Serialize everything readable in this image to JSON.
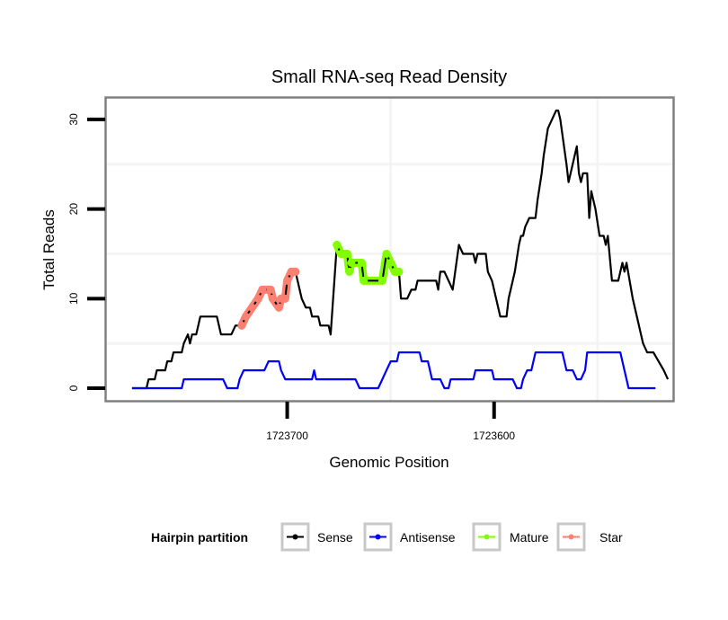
{
  "chart_data": {
    "type": "line",
    "title": "Small RNA-seq Read Density",
    "xlabel": "Genomic Position",
    "ylabel": "Total Reads",
    "x_reversed": true,
    "xlim": [
      1723788,
      1723513
    ],
    "ylim": [
      -1.5,
      32.5
    ],
    "x_ticks": [
      1723700,
      1723600
    ],
    "x_tick_labels": [
      "1723700",
      "1723600"
    ],
    "y_ticks": [
      0,
      10,
      20,
      30
    ],
    "y_tick_labels": [
      "0",
      "10",
      "20",
      "30"
    ],
    "x_minor_grid": [
      1723650,
      1723550
    ],
    "y_minor_grid": [
      5,
      15,
      25
    ],
    "grid": true,
    "legend": {
      "title": "Hairpin partition",
      "placement": "bottom",
      "entries": [
        {
          "label": "Sense",
          "color": "#000000"
        },
        {
          "label": "Antisense",
          "color": "#0000ff"
        },
        {
          "label": "Mature",
          "color": "#7fff00"
        },
        {
          "label": "Star",
          "color": "#fa8072"
        }
      ]
    },
    "series": [
      {
        "name": "Sense",
        "color": "#000000",
        "points": [
          [
            1723775,
            0
          ],
          [
            1723768,
            0
          ],
          [
            1723767,
            1
          ],
          [
            1723764,
            1
          ],
          [
            1723763,
            2
          ],
          [
            1723759,
            2
          ],
          [
            1723758,
            3
          ],
          [
            1723756,
            3
          ],
          [
            1723755,
            4
          ],
          [
            1723751,
            4
          ],
          [
            1723750,
            5
          ],
          [
            1723748,
            6
          ],
          [
            1723747,
            5
          ],
          [
            1723746,
            6
          ],
          [
            1723744,
            6
          ],
          [
            1723742,
            8
          ],
          [
            1723734,
            8
          ],
          [
            1723732,
            6
          ],
          [
            1723727,
            6
          ],
          [
            1723725,
            7
          ],
          [
            1723722,
            7
          ],
          [
            1723720,
            8
          ],
          [
            1723717,
            9
          ],
          [
            1723714,
            10
          ],
          [
            1723712,
            11
          ],
          [
            1723708,
            11
          ],
          [
            1723707,
            10
          ],
          [
            1723704,
            9
          ],
          [
            1723703,
            10
          ],
          [
            1723701,
            10
          ],
          [
            1723700,
            12
          ],
          [
            1723698,
            13
          ],
          [
            1723696,
            13
          ],
          [
            1723694,
            11
          ],
          [
            1723693,
            10
          ],
          [
            1723691,
            9
          ],
          [
            1723689,
            9
          ],
          [
            1723688,
            8
          ],
          [
            1723685,
            8
          ],
          [
            1723684,
            7
          ],
          [
            1723680,
            7
          ],
          [
            1723679,
            6
          ],
          [
            1723676,
            16
          ],
          [
            1723674,
            15
          ],
          [
            1723671,
            15
          ],
          [
            1723670,
            13
          ],
          [
            1723669,
            14
          ],
          [
            1723664,
            14
          ],
          [
            1723663,
            12
          ],
          [
            1723654,
            12
          ],
          [
            1723652,
            15
          ],
          [
            1723650,
            14
          ],
          [
            1723648,
            13
          ],
          [
            1723646,
            13
          ],
          [
            1723645,
            10
          ],
          [
            1723642,
            10
          ],
          [
            1723640,
            11
          ],
          [
            1723638,
            11
          ],
          [
            1723637,
            12
          ],
          [
            1723628,
            12
          ],
          [
            1723627,
            11
          ],
          [
            1723626,
            13
          ],
          [
            1723624,
            13
          ],
          [
            1723622,
            12
          ],
          [
            1723620,
            11
          ],
          [
            1723617,
            16
          ],
          [
            1723615,
            15
          ],
          [
            1723610,
            15
          ],
          [
            1723609,
            14
          ],
          [
            1723608,
            15
          ],
          [
            1723604,
            15
          ],
          [
            1723603,
            13
          ],
          [
            1723601,
            12
          ],
          [
            1723598,
            9
          ],
          [
            1723597,
            8
          ],
          [
            1723594,
            8
          ],
          [
            1723593,
            10
          ],
          [
            1723591,
            12
          ],
          [
            1723590,
            13
          ],
          [
            1723588,
            16
          ],
          [
            1723587,
            17
          ],
          [
            1723586,
            17
          ],
          [
            1723585,
            18
          ],
          [
            1723583,
            19
          ],
          [
            1723580,
            19
          ],
          [
            1723579,
            21
          ],
          [
            1723577,
            24
          ],
          [
            1723576,
            26
          ],
          [
            1723574,
            29
          ],
          [
            1723572,
            30
          ],
          [
            1723570,
            31
          ],
          [
            1723569,
            31
          ],
          [
            1723568,
            30
          ],
          [
            1723565,
            25
          ],
          [
            1723564,
            23
          ],
          [
            1723563,
            24
          ],
          [
            1723562,
            25
          ],
          [
            1723560,
            27
          ],
          [
            1723559,
            24
          ],
          [
            1723558,
            23
          ],
          [
            1723557,
            24
          ],
          [
            1723555,
            24
          ],
          [
            1723554,
            19
          ],
          [
            1723553,
            22
          ],
          [
            1723552,
            21
          ],
          [
            1723551,
            20
          ],
          [
            1723549,
            17
          ],
          [
            1723547,
            17
          ],
          [
            1723546,
            16
          ],
          [
            1723545,
            17
          ],
          [
            1723543,
            12
          ],
          [
            1723540,
            12
          ],
          [
            1723538,
            14
          ],
          [
            1723537,
            13
          ],
          [
            1723536,
            14
          ],
          [
            1723533,
            10
          ],
          [
            1723531,
            8
          ],
          [
            1723530,
            7
          ],
          [
            1723528,
            5
          ],
          [
            1723526,
            4
          ],
          [
            1723523,
            4
          ],
          [
            1723518,
            2
          ],
          [
            1723516,
            1
          ]
        ]
      },
      {
        "name": "Antisense",
        "color": "#0000ff",
        "points": [
          [
            1723775,
            0
          ],
          [
            1723751,
            0
          ],
          [
            1723750,
            1
          ],
          [
            1723731,
            1
          ],
          [
            1723729,
            0
          ],
          [
            1723724,
            0
          ],
          [
            1723723,
            1
          ],
          [
            1723721,
            2
          ],
          [
            1723711,
            2
          ],
          [
            1723709,
            3
          ],
          [
            1723704,
            3
          ],
          [
            1723703,
            2
          ],
          [
            1723701,
            1
          ],
          [
            1723688,
            1
          ],
          [
            1723687,
            2
          ],
          [
            1723686,
            1
          ],
          [
            1723667,
            1
          ],
          [
            1723665,
            0
          ],
          [
            1723656,
            0
          ],
          [
            1723654,
            1
          ],
          [
            1723652,
            2
          ],
          [
            1723650,
            3
          ],
          [
            1723647,
            3
          ],
          [
            1723646,
            4
          ],
          [
            1723636,
            4
          ],
          [
            1723635,
            3
          ],
          [
            1723632,
            3
          ],
          [
            1723630,
            1
          ],
          [
            1723626,
            1
          ],
          [
            1723624,
            0
          ],
          [
            1723622,
            0
          ],
          [
            1723621,
            1
          ],
          [
            1723610,
            1
          ],
          [
            1723609,
            2
          ],
          [
            1723601,
            2
          ],
          [
            1723600,
            1
          ],
          [
            1723591,
            1
          ],
          [
            1723589,
            0
          ],
          [
            1723587,
            0
          ],
          [
            1723586,
            1
          ],
          [
            1723584,
            2
          ],
          [
            1723582,
            2
          ],
          [
            1723580,
            4
          ],
          [
            1723567,
            4
          ],
          [
            1723565,
            2
          ],
          [
            1723562,
            2
          ],
          [
            1723560,
            1
          ],
          [
            1723558,
            1
          ],
          [
            1723556,
            2
          ],
          [
            1723555,
            4
          ],
          [
            1723539,
            4
          ],
          [
            1723535,
            0
          ],
          [
            1723522,
            0
          ]
        ]
      },
      {
        "name": "Mature",
        "color": "#7fff00",
        "points": [
          [
            1723676,
            16
          ],
          [
            1723674,
            15
          ],
          [
            1723671,
            15
          ],
          [
            1723670,
            13
          ],
          [
            1723669,
            14
          ],
          [
            1723664,
            14
          ],
          [
            1723663,
            12
          ],
          [
            1723654,
            12
          ],
          [
            1723652,
            15
          ],
          [
            1723650,
            14
          ],
          [
            1723648,
            13
          ],
          [
            1723646,
            13
          ]
        ]
      },
      {
        "name": "Star",
        "color": "#fa8072",
        "points": [
          [
            1723722,
            7
          ],
          [
            1723720,
            8
          ],
          [
            1723717,
            9
          ],
          [
            1723714,
            10
          ],
          [
            1723712,
            11
          ],
          [
            1723708,
            11
          ],
          [
            1723707,
            10
          ],
          [
            1723704,
            9
          ],
          [
            1723703,
            10
          ],
          [
            1723701,
            10
          ],
          [
            1723700,
            12
          ],
          [
            1723698,
            13
          ],
          [
            1723696,
            13
          ]
        ]
      }
    ]
  }
}
